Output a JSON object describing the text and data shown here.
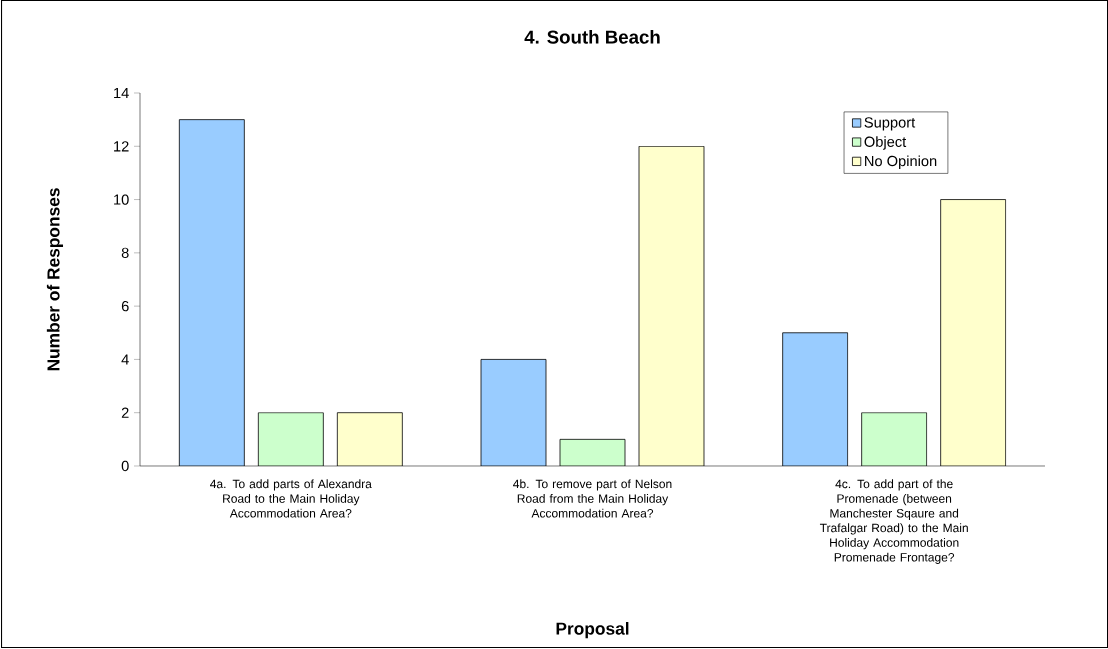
{
  "chart_data": {
    "type": "bar",
    "title": "4. South Beach",
    "xlabel": "Proposal",
    "ylabel": "Number of Responses",
    "categories": [
      "4a. To add parts of Alexandra Road to the Main Holiday Accommodation Area?",
      "4b. To remove part of Nelson Road from the Main Holiday Accommodation Area?",
      "4c. To add part of the Promenade (between Manchester Sqaure and Trafalgar Road) to the Main Holiday Accommodation Promenade Frontage?"
    ],
    "series": [
      {
        "name": "Support",
        "color": "#99ccff",
        "values": [
          13,
          4,
          5
        ]
      },
      {
        "name": "Object",
        "color": "#ccffcc",
        "values": [
          2,
          1,
          2
        ]
      },
      {
        "name": "No Opinion",
        "color": "#ffffcc",
        "values": [
          2,
          12,
          10
        ]
      }
    ],
    "ylim": [
      0,
      14
    ],
    "yticks": [
      0,
      2,
      4,
      6,
      8,
      10,
      12,
      14
    ],
    "grid": false,
    "legend": "top right"
  }
}
